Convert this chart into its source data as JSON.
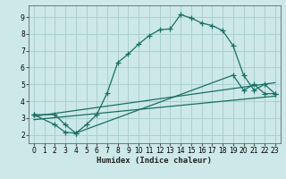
{
  "xlabel": "Humidex (Indice chaleur)",
  "bg_color": "#cce8e8",
  "grid_color": "#aacfcf",
  "line_color": "#1a6e64",
  "xlim": [
    -0.5,
    23.5
  ],
  "ylim": [
    1.5,
    9.7
  ],
  "xticks": [
    0,
    1,
    2,
    3,
    4,
    5,
    6,
    7,
    8,
    9,
    10,
    11,
    12,
    13,
    14,
    15,
    16,
    17,
    18,
    19,
    20,
    21,
    22,
    23
  ],
  "yticks": [
    2,
    3,
    4,
    5,
    6,
    7,
    8,
    9
  ],
  "line1_x": [
    0,
    2,
    3,
    4,
    5,
    6,
    7,
    8,
    9,
    10,
    11,
    12,
    13,
    14,
    15,
    16,
    17,
    18,
    19,
    20,
    21,
    22,
    23
  ],
  "line1_y": [
    3.2,
    3.2,
    2.6,
    2.1,
    2.6,
    3.2,
    4.5,
    6.3,
    6.8,
    7.4,
    7.9,
    8.25,
    8.3,
    9.15,
    8.95,
    8.65,
    8.5,
    8.2,
    7.3,
    5.55,
    4.65,
    5.0,
    4.45
  ],
  "line2_x": [
    0,
    2,
    3,
    4,
    19,
    20,
    21,
    22,
    23
  ],
  "line2_y": [
    3.2,
    2.6,
    2.15,
    2.1,
    5.55,
    4.65,
    5.0,
    4.45,
    4.45
  ],
  "line3_x": [
    0,
    23
  ],
  "line3_y": [
    2.9,
    4.3
  ],
  "line4_x": [
    0,
    23
  ],
  "line4_y": [
    3.1,
    5.1
  ]
}
